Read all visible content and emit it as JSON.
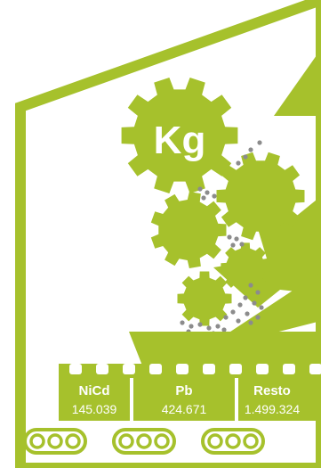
{
  "colors": {
    "accent": "#a6c12c",
    "background": "#ffffff",
    "particles": "#8c8c8c",
    "text": "#ffffff"
  },
  "gear_label": "Kg",
  "bins": [
    {
      "name": "NiCd",
      "value": "145.039"
    },
    {
      "name": "Pb",
      "value": "424.671"
    },
    {
      "name": "Resto",
      "value": "1.499.324"
    }
  ]
}
